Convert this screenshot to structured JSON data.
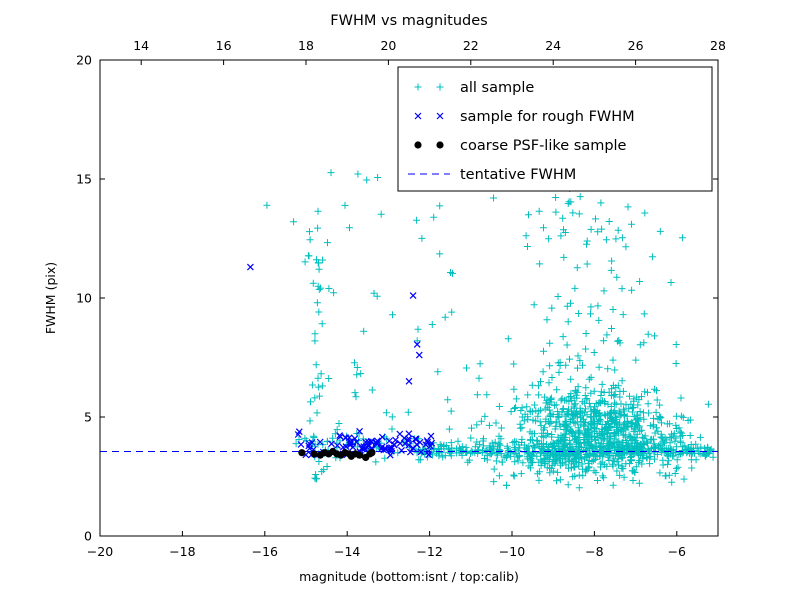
{
  "chart_data": {
    "type": "scatter",
    "title": "FWHM vs magnitudes",
    "xlabel": "magnitude (bottom:isnt / top:calib)",
    "ylabel": "FWHM (pix)",
    "xlim": [
      -20,
      -5
    ],
    "ylim": [
      0,
      20
    ],
    "top_lim": [
      13,
      28
    ],
    "grid": false,
    "legend_position": "upper center-right",
    "tentative_fwhm": 3.55,
    "colors": {
      "all": "#00bfbf",
      "rough": "#0000ff",
      "psf": "#000000",
      "line": "#0000ff"
    },
    "x_ticks": [
      {
        "v": -20,
        "label": "−20"
      },
      {
        "v": -18,
        "label": "−18"
      },
      {
        "v": -16,
        "label": "−16"
      },
      {
        "v": -14,
        "label": "−14"
      },
      {
        "v": -12,
        "label": "−12"
      },
      {
        "v": -10,
        "label": "−10"
      },
      {
        "v": -8,
        "label": "−8"
      },
      {
        "v": -6,
        "label": "−6"
      }
    ],
    "top_ticks": [
      {
        "v": 14,
        "label": "14"
      },
      {
        "v": 16,
        "label": "16"
      },
      {
        "v": 18,
        "label": "18"
      },
      {
        "v": 20,
        "label": "20"
      },
      {
        "v": 22,
        "label": "22"
      },
      {
        "v": 24,
        "label": "24"
      },
      {
        "v": 26,
        "label": "26"
      },
      {
        "v": 28,
        "label": "28"
      }
    ],
    "y_ticks": [
      {
        "v": 0,
        "label": "0"
      },
      {
        "v": 5,
        "label": "5"
      },
      {
        "v": 10,
        "label": "10"
      },
      {
        "v": 15,
        "label": "15"
      },
      {
        "v": 20,
        "label": "20"
      }
    ],
    "legend": [
      {
        "label": "all sample",
        "series": "all"
      },
      {
        "label": "sample for rough FWHM",
        "series": "rough"
      },
      {
        "label": "coarse PSF-like sample",
        "series": "psf"
      },
      {
        "label": "tentative FWHM",
        "series": "line"
      }
    ],
    "series": [
      {
        "id": "all",
        "name": "all sample",
        "marker": "plus",
        "color": "#00bfbf",
        "seed": 42,
        "clusters": [
          {
            "n": 780,
            "x": {
              "type": "gauss",
              "mu": -8.0,
              "sd": 1.05,
              "min": -10.9,
              "max": -5.2
            },
            "y": {
              "type": "gauss",
              "mu": 4.15,
              "sd": 0.9,
              "min": 2.3,
              "max": 7.2
            }
          },
          {
            "n": 170,
            "x": {
              "type": "gauss",
              "mu": -8.1,
              "sd": 0.95,
              "min": -10.6,
              "max": -5.5
            },
            "y": {
              "type": "pow",
              "base": 5.0,
              "range": 9.5,
              "pow": 2.0
            }
          },
          {
            "n": 340,
            "x": {
              "type": "uniform",
              "min": -12.35,
              "max": -5.1
            },
            "y": {
              "type": "gauss",
              "mu": 3.55,
              "sd": 0.17
            }
          },
          {
            "n": 45,
            "x": {
              "type": "uniform",
              "min": -15.3,
              "max": -12.35
            },
            "y": {
              "type": "gauss",
              "mu": 3.7,
              "sd": 0.35
            }
          },
          {
            "n": 52,
            "x": {
              "type": "gauss",
              "mu": -14.72,
              "sd": 0.13,
              "min": -15.05,
              "max": -14.4
            },
            "y": {
              "type": "pow",
              "base": 2.4,
              "range": 11.6,
              "pow": 1.6
            }
          },
          {
            "n": 60,
            "x": {
              "type": "uniform",
              "min": -14.5,
              "max": -10.4
            },
            "y": {
              "type": "pow",
              "base": 3.9,
              "range": 12.0,
              "pow": 2.4
            }
          },
          {
            "n": 25,
            "x": {
              "type": "uniform",
              "min": -10.5,
              "max": -5.3
            },
            "y": {
              "type": "uniform",
              "min": 1.8,
              "max": 3.0
            }
          }
        ],
        "points": [
          [
            -15.95,
            13.9
          ],
          [
            -15.3,
            13.2
          ],
          [
            -14.9,
            12.45
          ],
          [
            -12.35,
            16.5
          ],
          [
            -10.1,
            16.7
          ],
          [
            -11.2,
            14.9
          ],
          [
            -10.45,
            14.2
          ],
          [
            -9.6,
            13.5
          ],
          [
            -8.6,
            14.6
          ],
          [
            -7.1,
            13.1
          ],
          [
            -6.4,
            12.8
          ],
          [
            -13.35,
            10.2
          ],
          [
            -13.6,
            8.6
          ],
          [
            -12.9,
            9.3
          ]
        ]
      },
      {
        "id": "rough",
        "name": "sample for rough FWHM",
        "marker": "x",
        "color": "#0000ff",
        "seed": 7,
        "clusters": [
          {
            "n": 88,
            "x": {
              "type": "uniform",
              "min": -15.2,
              "max": -11.95
            },
            "y": {
              "type": "gauss",
              "mu": 3.8,
              "sd": 0.25,
              "min": 3.3,
              "max": 4.6
            }
          }
        ],
        "points": [
          [
            -16.35,
            11.3
          ],
          [
            -12.4,
            10.1
          ],
          [
            -12.3,
            8.05
          ],
          [
            -12.25,
            7.6
          ],
          [
            -12.5,
            6.5
          ],
          [
            -11.95,
            3.9
          ],
          [
            -13.7,
            4.4
          ]
        ]
      },
      {
        "id": "psf",
        "name": "coarse PSF-like sample",
        "marker": "dot",
        "color": "#000000",
        "seed": 3,
        "clusters": [],
        "points": [
          [
            -15.1,
            3.5
          ],
          [
            -14.8,
            3.45
          ],
          [
            -14.65,
            3.4
          ],
          [
            -14.55,
            3.5
          ],
          [
            -14.45,
            3.45
          ],
          [
            -14.35,
            3.55
          ],
          [
            -14.25,
            3.45
          ],
          [
            -14.15,
            3.4
          ],
          [
            -14.05,
            3.5
          ],
          [
            -13.95,
            3.45
          ],
          [
            -13.9,
            3.35
          ],
          [
            -13.8,
            3.45
          ],
          [
            -13.7,
            3.4
          ],
          [
            -13.55,
            3.3
          ],
          [
            -13.45,
            3.45
          ],
          [
            -13.4,
            3.5
          ]
        ]
      }
    ]
  }
}
